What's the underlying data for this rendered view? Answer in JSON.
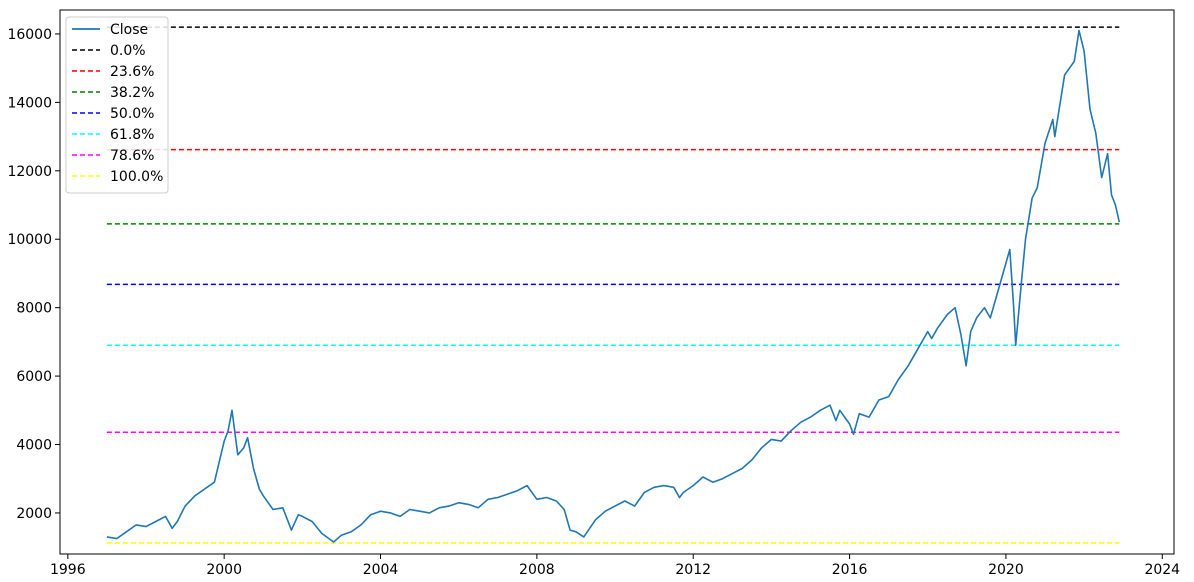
{
  "chart_data": {
    "type": "line",
    "title": "",
    "xlabel": "",
    "ylabel": "",
    "xlim": [
      1995.8,
      2024.3
    ],
    "ylim": [
      800,
      16700
    ],
    "x_ticks": [
      1996,
      2000,
      2004,
      2008,
      2012,
      2016,
      2020,
      2024
    ],
    "y_ticks": [
      2000,
      4000,
      6000,
      8000,
      10000,
      12000,
      14000,
      16000
    ],
    "x_tick_labels": [
      "1996",
      "2000",
      "2004",
      "2008",
      "2012",
      "2016",
      "2020",
      "2024"
    ],
    "y_tick_labels": [
      "2000",
      "4000",
      "6000",
      "8000",
      "10000",
      "12000",
      "14000",
      "16000"
    ],
    "grid": false,
    "legend_position": "upper-left",
    "series": [
      {
        "name": "Close",
        "color": "#1f77b4",
        "style": "solid",
        "x": [
          1997.0,
          1997.25,
          1997.5,
          1997.75,
          1998.0,
          1998.25,
          1998.5,
          1998.67,
          1998.8,
          1999.0,
          1999.25,
          1999.5,
          1999.75,
          2000.0,
          2000.1,
          2000.2,
          2000.35,
          2000.5,
          2000.6,
          2000.75,
          2000.9,
          2001.0,
          2001.25,
          2001.5,
          2001.72,
          2001.9,
          2002.0,
          2002.25,
          2002.5,
          2002.8,
          2003.0,
          2003.25,
          2003.5,
          2003.75,
          2004.0,
          2004.25,
          2004.5,
          2004.75,
          2005.0,
          2005.25,
          2005.5,
          2005.75,
          2006.0,
          2006.25,
          2006.5,
          2006.75,
          2007.0,
          2007.25,
          2007.5,
          2007.75,
          2008.0,
          2008.25,
          2008.5,
          2008.7,
          2008.85,
          2009.0,
          2009.2,
          2009.5,
          2009.75,
          2010.0,
          2010.25,
          2010.5,
          2010.75,
          2011.0,
          2011.25,
          2011.5,
          2011.65,
          2011.75,
          2012.0,
          2012.25,
          2012.5,
          2012.75,
          2013.0,
          2013.25,
          2013.5,
          2013.75,
          2014.0,
          2014.25,
          2014.5,
          2014.75,
          2015.0,
          2015.25,
          2015.5,
          2015.65,
          2015.75,
          2016.0,
          2016.1,
          2016.25,
          2016.5,
          2016.75,
          2017.0,
          2017.25,
          2017.5,
          2017.75,
          2018.0,
          2018.1,
          2018.25,
          2018.5,
          2018.7,
          2018.85,
          2018.98,
          2019.1,
          2019.25,
          2019.45,
          2019.6,
          2019.75,
          2020.0,
          2020.1,
          2020.2,
          2020.25,
          2020.4,
          2020.5,
          2020.67,
          2020.8,
          2021.0,
          2021.2,
          2021.25,
          2021.5,
          2021.75,
          2021.87,
          2022.0,
          2022.15,
          2022.3,
          2022.45,
          2022.6,
          2022.7,
          2022.8,
          2022.9
        ],
        "y": [
          1300,
          1250,
          1450,
          1650,
          1600,
          1750,
          1900,
          1550,
          1750,
          2200,
          2500,
          2700,
          2900,
          4100,
          4400,
          5000,
          3700,
          3900,
          4200,
          3300,
          2700,
          2500,
          2100,
          2150,
          1500,
          1950,
          1900,
          1750,
          1400,
          1150,
          1350,
          1450,
          1650,
          1950,
          2050,
          2000,
          1900,
          2100,
          2050,
          2000,
          2150,
          2200,
          2300,
          2250,
          2150,
          2400,
          2450,
          2550,
          2650,
          2800,
          2400,
          2450,
          2350,
          2100,
          1500,
          1450,
          1300,
          1800,
          2050,
          2200,
          2350,
          2200,
          2600,
          2750,
          2800,
          2750,
          2450,
          2600,
          2800,
          3050,
          2900,
          3000,
          3150,
          3300,
          3550,
          3900,
          4150,
          4100,
          4400,
          4650,
          4800,
          5000,
          5150,
          4700,
          5000,
          4600,
          4300,
          4900,
          4800,
          5300,
          5400,
          5900,
          6300,
          6800,
          7300,
          7100,
          7400,
          7800,
          8000,
          7200,
          6300,
          7300,
          7700,
          8000,
          7700,
          8300,
          9300,
          9700,
          8000,
          6900,
          8800,
          10000,
          11200,
          11500,
          12800,
          13500,
          13000,
          14800,
          15200,
          16100,
          15500,
          13800,
          13100,
          11800,
          12500,
          11300,
          11000,
          10500
        ]
      }
    ],
    "levels": [
      {
        "name": "0.0%",
        "value": 16200,
        "color": "#000000"
      },
      {
        "name": "23.6%",
        "value": 12620,
        "color": "#ff0000"
      },
      {
        "name": "38.2%",
        "value": 10450,
        "color": "#008000"
      },
      {
        "name": "50.0%",
        "value": 8680,
        "color": "#0000ff"
      },
      {
        "name": "61.8%",
        "value": 6900,
        "color": "#00ffff"
      },
      {
        "name": "78.6%",
        "value": 4360,
        "color": "#ff00ff"
      },
      {
        "name": "100.0%",
        "value": 1120,
        "color": "#ffff00"
      }
    ],
    "level_x_range": [
      1997.0,
      2022.9
    ]
  }
}
